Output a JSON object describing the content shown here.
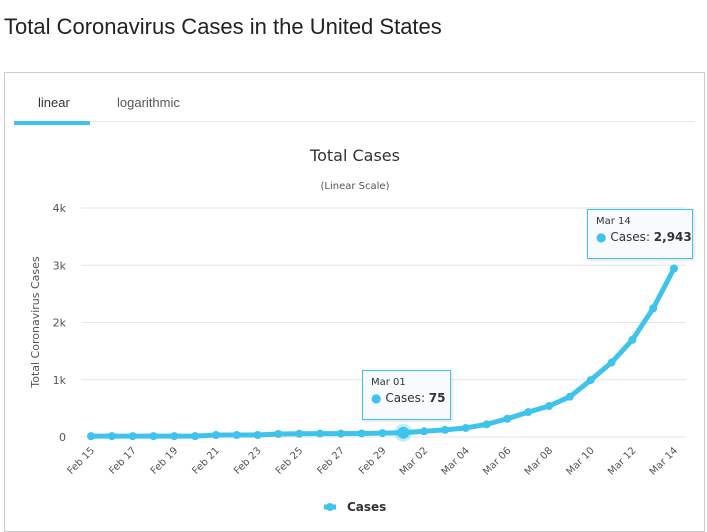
{
  "page": {
    "title": "Total Coronavirus Cases in the United States"
  },
  "tabs": [
    {
      "label": "linear",
      "active": true
    },
    {
      "label": "logarithmic",
      "active": false
    }
  ],
  "colors": {
    "accent": "#3ec3ea",
    "grid": "#e6e6e6"
  },
  "chart_data": {
    "type": "line",
    "title": "Total Cases",
    "subtitle": "(Linear Scale)",
    "ylabel": "Total Coronavirus Cases",
    "xlabel": "",
    "ylim": [
      0,
      4000
    ],
    "yticks": [
      {
        "v": 0,
        "label": "0"
      },
      {
        "v": 1000,
        "label": "1k"
      },
      {
        "v": 2000,
        "label": "2k"
      },
      {
        "v": 3000,
        "label": "3k"
      },
      {
        "v": 4000,
        "label": "4k"
      }
    ],
    "x": [
      "Feb 15",
      "Feb 16",
      "Feb 17",
      "Feb 18",
      "Feb 19",
      "Feb 20",
      "Feb 21",
      "Feb 22",
      "Feb 23",
      "Feb 24",
      "Feb 25",
      "Feb 26",
      "Feb 27",
      "Feb 28",
      "Feb 29",
      "Mar 01",
      "Mar 02",
      "Mar 03",
      "Mar 04",
      "Mar 05",
      "Mar 06",
      "Mar 07",
      "Mar 08",
      "Mar 09",
      "Mar 10",
      "Mar 11",
      "Mar 12",
      "Mar 13",
      "Mar 14"
    ],
    "series": [
      {
        "name": "Cases",
        "values": [
          15,
          15,
          15,
          15,
          15,
          15,
          35,
          35,
          35,
          53,
          57,
          60,
          60,
          62,
          68,
          75,
          100,
          124,
          158,
          221,
          319,
          435,
          541,
          704,
          994,
          1301,
          1697,
          2247,
          2943
        ]
      }
    ],
    "legend": "bottom-center",
    "grid": true,
    "tooltips": [
      {
        "date": "Mar 01",
        "label": "Cases",
        "value": "75"
      },
      {
        "date": "Mar 14",
        "label": "Cases",
        "value": "2,943"
      }
    ]
  }
}
